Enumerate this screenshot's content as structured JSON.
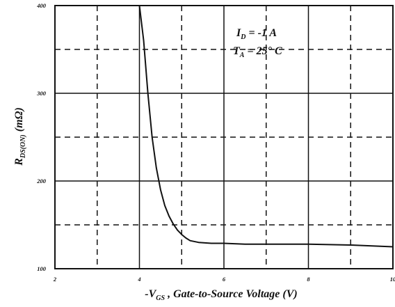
{
  "chart_data": {
    "type": "line",
    "title": "",
    "xlabel": {
      "prefix": "-V",
      "sub": "GS",
      "suffix": " , Gate-to-Source Voltage (V)"
    },
    "ylabel": {
      "main": "R",
      "sub": "DS(ON)",
      "suffix": " (mΩ)"
    },
    "xlim": [
      2,
      10
    ],
    "ylim": [
      100,
      400
    ],
    "xticks": [
      "2",
      "4",
      "6",
      "8",
      "10"
    ],
    "yticks": [
      "100",
      "200",
      "300",
      "400"
    ],
    "grid": {
      "solid_x": [
        4,
        6,
        8
      ],
      "dashed_x": [
        3,
        5,
        7,
        9
      ],
      "solid_y": [
        200,
        300
      ],
      "dashed_y": [
        150,
        250,
        350
      ]
    },
    "annotations": [
      {
        "label": "I",
        "sub": "D",
        "value": " = -1 A"
      },
      {
        "label": "T",
        "sub": "A",
        "value": " = 25° C"
      }
    ],
    "series": [
      {
        "values": [
          [
            4.0,
            400
          ],
          [
            4.1,
            360
          ],
          [
            4.2,
            300
          ],
          [
            4.3,
            250
          ],
          [
            4.4,
            215
          ],
          [
            4.5,
            190
          ],
          [
            4.6,
            172
          ],
          [
            4.7,
            160
          ],
          [
            4.8,
            151
          ],
          [
            4.9,
            144
          ],
          [
            5.0,
            139
          ],
          [
            5.1,
            135
          ],
          [
            5.2,
            132
          ],
          [
            5.4,
            130
          ],
          [
            5.7,
            129
          ],
          [
            6.0,
            129
          ],
          [
            6.5,
            128
          ],
          [
            7.0,
            128
          ],
          [
            8.0,
            128
          ],
          [
            9.0,
            127
          ],
          [
            10.0,
            125
          ]
        ]
      }
    ]
  }
}
